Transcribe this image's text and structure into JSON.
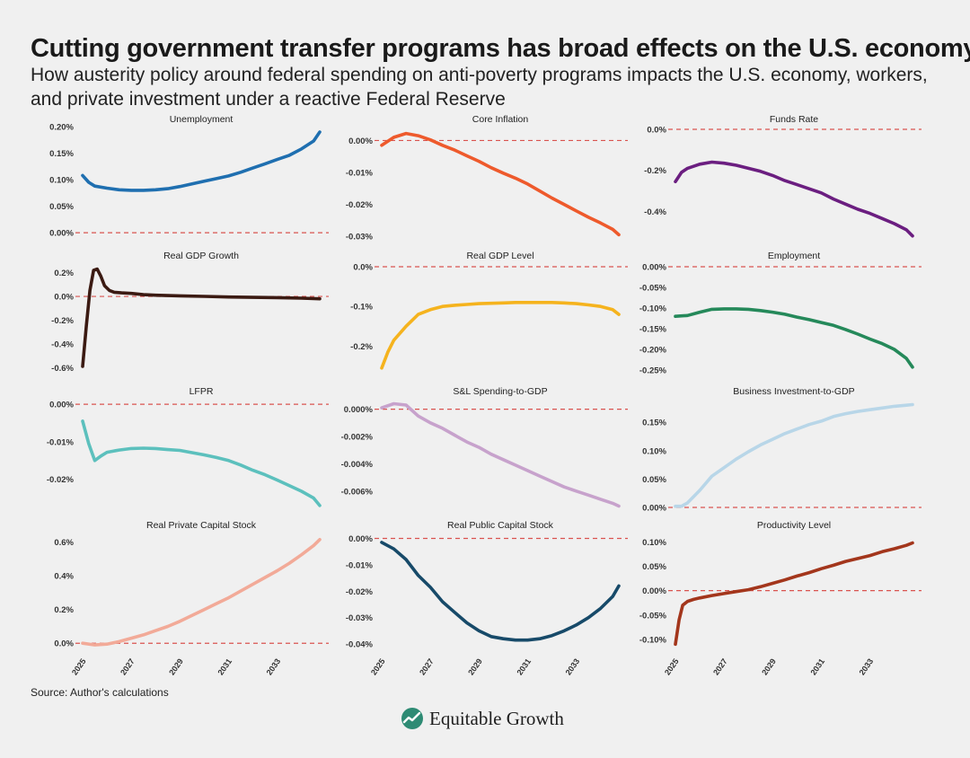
{
  "header": {
    "title": "Cutting government transfer programs has broad effects on the U.S. economy",
    "subtitle": "How austerity policy around federal spending on anti-poverty programs impacts the U.S. economy, workers, and private investment under a reactive Federal Reserve"
  },
  "source": "Source: Author's calculations",
  "logo": {
    "text": "Equitable Growth",
    "icon": "rising-line-logo-icon"
  },
  "colors": {
    "zero_line": "#d9534f",
    "background": "#f0f0f0"
  },
  "x_axis": {
    "ticks": [
      "2025",
      "2027",
      "2029",
      "2031",
      "2033"
    ],
    "range": [
      2025,
      2034.75
    ]
  },
  "chart_data": [
    {
      "type": "line",
      "title": "Unemployment",
      "color": "#1f6fb0",
      "ylim": [
        -0.01,
        0.195
      ],
      "yticks": [
        0,
        0.05,
        0.1,
        0.15,
        0.2
      ],
      "ytick_labels": [
        "0.00%",
        "0.05%",
        "0.10%",
        "0.15%",
        "0.20%"
      ],
      "x": [
        2025.0,
        2025.25,
        2025.5,
        2026.0,
        2026.5,
        2027.0,
        2027.5,
        2028.0,
        2028.5,
        2029.0,
        2029.5,
        2030.0,
        2030.5,
        2031.0,
        2031.5,
        2032.0,
        2032.5,
        2033.0,
        2033.5,
        2034.0,
        2034.5,
        2034.75
      ],
      "y": [
        0.108,
        0.095,
        0.088,
        0.084,
        0.081,
        0.08,
        0.08,
        0.081,
        0.083,
        0.087,
        0.092,
        0.097,
        0.102,
        0.107,
        0.114,
        0.122,
        0.13,
        0.138,
        0.146,
        0.158,
        0.173,
        0.19
      ]
    },
    {
      "type": "line",
      "title": "Core Inflation",
      "color": "#ee5a2c",
      "ylim": [
        -0.0305,
        0.0035
      ],
      "yticks": [
        0,
        -0.01,
        -0.02,
        -0.03
      ],
      "ytick_labels": [
        "0.00%",
        "-0.01%",
        "-0.02%",
        "-0.03%"
      ],
      "x": [
        2025.0,
        2025.5,
        2026.0,
        2026.5,
        2027.0,
        2027.5,
        2028.0,
        2028.5,
        2029.0,
        2029.5,
        2030.0,
        2030.5,
        2031.0,
        2031.5,
        2032.0,
        2032.5,
        2033.0,
        2033.5,
        2034.0,
        2034.5,
        2034.75
      ],
      "y": [
        -0.0015,
        0.001,
        0.0022,
        0.0015,
        0.0002,
        -0.0015,
        -0.003,
        -0.0048,
        -0.0065,
        -0.0085,
        -0.0102,
        -0.0118,
        -0.0136,
        -0.0158,
        -0.018,
        -0.02,
        -0.022,
        -0.024,
        -0.0258,
        -0.0278,
        -0.0295
      ]
    },
    {
      "type": "line",
      "title": "Funds Rate",
      "color": "#6b1e80",
      "ylim": [
        -0.53,
        0.0
      ],
      "yticks": [
        0,
        -0.2,
        -0.4
      ],
      "ytick_labels": [
        "0.0%",
        "-0.2%",
        "-0.4%"
      ],
      "x": [
        2025.0,
        2025.25,
        2025.5,
        2026.0,
        2026.5,
        2027.0,
        2027.5,
        2028.0,
        2028.5,
        2029.0,
        2029.5,
        2030.0,
        2030.5,
        2031.0,
        2031.5,
        2032.0,
        2032.5,
        2033.0,
        2033.5,
        2034.0,
        2034.5,
        2034.75
      ],
      "y": [
        -0.255,
        -0.21,
        -0.19,
        -0.17,
        -0.16,
        -0.165,
        -0.175,
        -0.19,
        -0.205,
        -0.225,
        -0.25,
        -0.27,
        -0.29,
        -0.31,
        -0.34,
        -0.365,
        -0.39,
        -0.41,
        -0.435,
        -0.46,
        -0.49,
        -0.52
      ]
    },
    {
      "type": "line",
      "title": "Real GDP Growth",
      "color": "#3b1a12",
      "ylim": [
        -0.62,
        0.25
      ],
      "yticks": [
        0.2,
        0,
        -0.2,
        -0.4,
        -0.6
      ],
      "ytick_labels": [
        "0.2%",
        "0.0%",
        "-0.2%",
        "-0.4%",
        "-0.6%"
      ],
      "x": [
        2025.0,
        2025.15,
        2025.3,
        2025.45,
        2025.6,
        2025.75,
        2025.9,
        2026.1,
        2026.3,
        2026.6,
        2027.0,
        2027.5,
        2028.0,
        2029.0,
        2030.0,
        2031.0,
        2032.0,
        2033.0,
        2034.0,
        2034.75
      ],
      "y": [
        -0.59,
        -0.25,
        0.05,
        0.22,
        0.23,
        0.17,
        0.09,
        0.05,
        0.035,
        0.03,
        0.025,
        0.015,
        0.01,
        0.005,
        0.0,
        -0.005,
        -0.008,
        -0.01,
        -0.015,
        -0.02
      ]
    },
    {
      "type": "line",
      "title": "Real GDP Level",
      "color": "#f5b31e",
      "ylim": [
        -0.26,
        0.0
      ],
      "yticks": [
        0,
        -0.1,
        -0.2
      ],
      "ytick_labels": [
        "0.0%",
        "-0.1%",
        "-0.2%"
      ],
      "x": [
        2025.0,
        2025.25,
        2025.5,
        2026.0,
        2026.5,
        2027.0,
        2027.5,
        2028.0,
        2028.5,
        2029.0,
        2029.5,
        2030.0,
        2030.5,
        2031.0,
        2031.5,
        2032.0,
        2032.5,
        2033.0,
        2033.5,
        2034.0,
        2034.5,
        2034.75
      ],
      "y": [
        -0.255,
        -0.215,
        -0.185,
        -0.15,
        -0.12,
        -0.108,
        -0.1,
        -0.097,
        -0.095,
        -0.093,
        -0.092,
        -0.091,
        -0.09,
        -0.09,
        -0.09,
        -0.09,
        -0.091,
        -0.093,
        -0.096,
        -0.1,
        -0.108,
        -0.12
      ]
    },
    {
      "type": "line",
      "title": "Employment",
      "color": "#25895a",
      "ylim": [
        -0.25,
        0.0
      ],
      "yticks": [
        0,
        -0.05,
        -0.1,
        -0.15,
        -0.2,
        -0.25
      ],
      "ytick_labels": [
        "0.00%",
        "-0.05%",
        "-0.10%",
        "-0.15%",
        "-0.20%",
        "-0.25%"
      ],
      "x": [
        2025.0,
        2025.5,
        2026.0,
        2026.5,
        2027.0,
        2027.5,
        2028.0,
        2028.5,
        2029.0,
        2029.5,
        2030.0,
        2030.5,
        2031.0,
        2031.5,
        2032.0,
        2032.5,
        2033.0,
        2033.5,
        2034.0,
        2034.5,
        2034.75
      ],
      "y": [
        -0.12,
        -0.118,
        -0.11,
        -0.103,
        -0.102,
        -0.102,
        -0.103,
        -0.106,
        -0.11,
        -0.115,
        -0.122,
        -0.128,
        -0.135,
        -0.142,
        -0.152,
        -0.163,
        -0.175,
        -0.186,
        -0.2,
        -0.222,
        -0.243
      ]
    },
    {
      "type": "line",
      "title": "LFPR",
      "color": "#5cc0bd",
      "ylim": [
        -0.0275,
        0.0005
      ],
      "yticks": [
        0,
        -0.01,
        -0.02
      ],
      "ytick_labels": [
        "0.00%",
        "-0.01%",
        "-0.02%"
      ],
      "x": [
        2025.0,
        2025.25,
        2025.5,
        2025.75,
        2026.0,
        2026.5,
        2027.0,
        2027.5,
        2028.0,
        2028.5,
        2029.0,
        2029.5,
        2030.0,
        2030.5,
        2031.0,
        2031.5,
        2032.0,
        2032.5,
        2033.0,
        2033.5,
        2034.0,
        2034.5,
        2034.75
      ],
      "y": [
        -0.0045,
        -0.0105,
        -0.015,
        -0.0138,
        -0.0128,
        -0.0122,
        -0.0118,
        -0.0117,
        -0.0118,
        -0.0121,
        -0.0123,
        -0.0129,
        -0.0135,
        -0.0142,
        -0.015,
        -0.0162,
        -0.0176,
        -0.0188,
        -0.0202,
        -0.0217,
        -0.0232,
        -0.025,
        -0.027
      ]
    },
    {
      "type": "line",
      "title": "S&L Spending-to-GDP",
      "color": "#c7a2cc",
      "ylim": [
        -0.0072,
        0.0005
      ],
      "yticks": [
        0,
        -0.002,
        -0.004,
        -0.006
      ],
      "ytick_labels": [
        "0.000%",
        "-0.002%",
        "-0.004%",
        "-0.006%"
      ],
      "x": [
        2025.0,
        2025.5,
        2026.0,
        2026.5,
        2027.0,
        2027.5,
        2028.0,
        2028.5,
        2029.0,
        2029.5,
        2030.0,
        2030.5,
        2031.0,
        2031.5,
        2032.0,
        2032.5,
        2033.0,
        2033.5,
        2034.0,
        2034.5,
        2034.75
      ],
      "y": [
        0.0001,
        0.0004,
        0.0003,
        -0.0005,
        -0.001,
        -0.0014,
        -0.0019,
        -0.0024,
        -0.0028,
        -0.0033,
        -0.0037,
        -0.0041,
        -0.0045,
        -0.0049,
        -0.0053,
        -0.0057,
        -0.006,
        -0.0063,
        -0.0066,
        -0.0069,
        -0.0071
      ]
    },
    {
      "type": "line",
      "title": "Business Investment-to-GDP",
      "color": "#b8d6e8",
      "ylim": [
        0.0,
        0.185
      ],
      "yticks": [
        0,
        0.05,
        0.1,
        0.15
      ],
      "ytick_labels": [
        "0.00%",
        "0.05%",
        "0.10%",
        "0.15%"
      ],
      "x": [
        2025.0,
        2025.25,
        2025.5,
        2026.0,
        2026.5,
        2027.0,
        2027.5,
        2028.0,
        2028.5,
        2029.0,
        2029.5,
        2030.0,
        2030.5,
        2031.0,
        2031.5,
        2032.0,
        2032.5,
        2033.0,
        2033.5,
        2034.0,
        2034.5,
        2034.75
      ],
      "y": [
        0.002,
        0.002,
        0.008,
        0.03,
        0.055,
        0.07,
        0.085,
        0.098,
        0.11,
        0.12,
        0.13,
        0.138,
        0.146,
        0.152,
        0.16,
        0.165,
        0.169,
        0.172,
        0.175,
        0.178,
        0.18,
        0.181
      ]
    },
    {
      "type": "line",
      "title": "Real Private Capital Stock",
      "color": "#f2aa98",
      "ylim": [
        -0.02,
        0.63
      ],
      "yticks": [
        0,
        0.2,
        0.4,
        0.6
      ],
      "ytick_labels": [
        "0.0%",
        "0.2%",
        "0.4%",
        "0.6%"
      ],
      "x": [
        2025.0,
        2025.5,
        2026.0,
        2026.5,
        2027.0,
        2027.5,
        2028.0,
        2028.5,
        2029.0,
        2029.5,
        2030.0,
        2030.5,
        2031.0,
        2031.5,
        2032.0,
        2032.5,
        2033.0,
        2033.5,
        2034.0,
        2034.5,
        2034.75
      ],
      "y": [
        0.0,
        -0.01,
        -0.005,
        0.01,
        0.03,
        0.05,
        0.075,
        0.1,
        0.13,
        0.165,
        0.2,
        0.235,
        0.27,
        0.31,
        0.35,
        0.39,
        0.43,
        0.475,
        0.525,
        0.58,
        0.615
      ]
    },
    {
      "type": "line",
      "title": "Real Public Capital Stock",
      "color": "#174a69",
      "ylim": [
        -0.041,
        0.0005
      ],
      "yticks": [
        0,
        -0.01,
        -0.02,
        -0.03,
        -0.04
      ],
      "ytick_labels": [
        "0.00%",
        "-0.01%",
        "-0.02%",
        "-0.03%",
        "-0.04%"
      ],
      "x": [
        2025.0,
        2025.5,
        2026.0,
        2026.5,
        2027.0,
        2027.5,
        2028.0,
        2028.5,
        2029.0,
        2029.5,
        2030.0,
        2030.5,
        2031.0,
        2031.5,
        2032.0,
        2032.5,
        2033.0,
        2033.5,
        2034.0,
        2034.5,
        2034.75
      ],
      "y": [
        -0.0015,
        -0.004,
        -0.008,
        -0.014,
        -0.0185,
        -0.024,
        -0.028,
        -0.032,
        -0.035,
        -0.0372,
        -0.038,
        -0.0385,
        -0.0385,
        -0.038,
        -0.0368,
        -0.035,
        -0.0328,
        -0.03,
        -0.0265,
        -0.022,
        -0.018
      ]
    },
    {
      "type": "line",
      "title": "Productivity Level",
      "color": "#a3361c",
      "ylim": [
        -0.115,
        0.11
      ],
      "yticks": [
        0.1,
        0.05,
        0,
        -0.05,
        -0.1
      ],
      "ytick_labels": [
        "0.10%",
        "0.05%",
        "0.00%",
        "-0.05%",
        "-0.10%"
      ],
      "x": [
        2025.0,
        2025.15,
        2025.3,
        2025.5,
        2025.75,
        2026.0,
        2026.5,
        2027.0,
        2027.5,
        2028.0,
        2028.5,
        2029.0,
        2029.5,
        2030.0,
        2030.5,
        2031.0,
        2031.5,
        2032.0,
        2032.5,
        2033.0,
        2033.5,
        2034.0,
        2034.5,
        2034.75
      ],
      "y": [
        -0.11,
        -0.06,
        -0.03,
        -0.022,
        -0.018,
        -0.015,
        -0.01,
        -0.006,
        -0.002,
        0.002,
        0.008,
        0.015,
        0.022,
        0.03,
        0.037,
        0.045,
        0.052,
        0.06,
        0.066,
        0.072,
        0.08,
        0.086,
        0.093,
        0.098
      ]
    }
  ]
}
